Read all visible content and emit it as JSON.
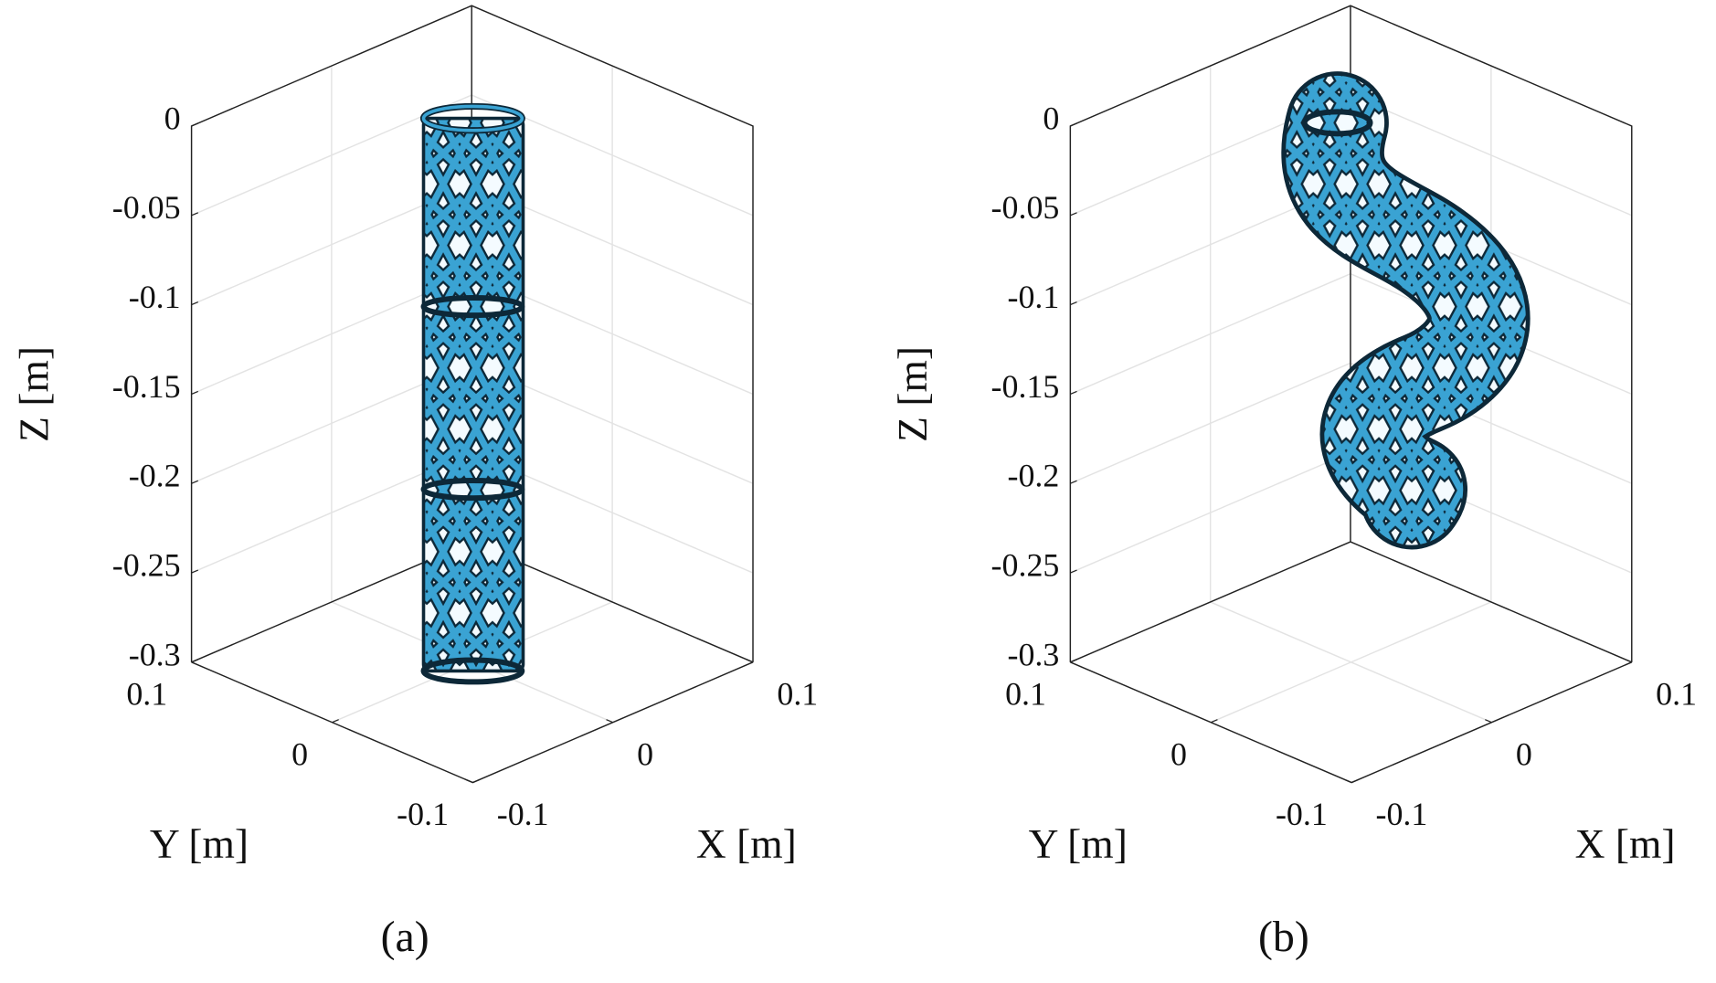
{
  "chart_data": [
    {
      "type": "surface3d",
      "caption": "(a)",
      "xlabel": "X [m]",
      "ylabel": "Y [m]",
      "zlabel": "Z [m]",
      "xlim": [
        -0.1,
        0.1
      ],
      "ylim": [
        -0.1,
        0.1
      ],
      "zlim": [
        -0.3,
        0
      ],
      "xticks": [
        -0.1,
        0,
        0.1
      ],
      "yticks": [
        -0.1,
        0,
        0.1
      ],
      "zticks": [
        -0.3,
        -0.25,
        -0.2,
        -0.15,
        -0.1,
        -0.05,
        0
      ],
      "grid": true
    },
    {
      "type": "surface3d",
      "caption": "(b)",
      "xlabel": "X [m]",
      "ylabel": "Y [m]",
      "zlabel": "Z [m]",
      "xlim": [
        -0.1,
        0.1
      ],
      "ylim": [
        -0.1,
        0.1
      ],
      "zlim": [
        -0.3,
        0
      ],
      "xticks": [
        -0.1,
        0,
        0.1
      ],
      "yticks": [
        -0.1,
        0,
        0.1
      ],
      "zticks": [
        -0.3,
        -0.25,
        -0.2,
        -0.15,
        -0.1,
        -0.05,
        0
      ],
      "grid": true
    }
  ]
}
